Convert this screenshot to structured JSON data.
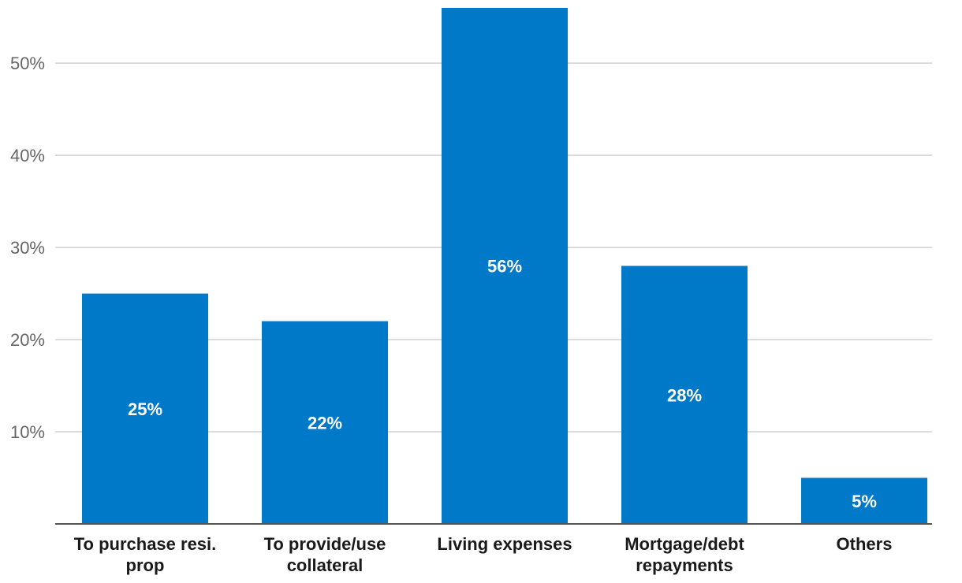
{
  "chart_data": {
    "type": "bar",
    "title": "",
    "xlabel": "",
    "ylabel": "",
    "categories": [
      [
        "To purchase resi.",
        "prop"
      ],
      [
        "To provide/use",
        "collateral"
      ],
      [
        "Living expenses"
      ],
      [
        "Mortgage/debt",
        "repayments"
      ],
      [
        "Others"
      ]
    ],
    "values": [
      25,
      22,
      56,
      28,
      5
    ],
    "data_labels": [
      "25%",
      "22%",
      "56%",
      "28%",
      "5%"
    ],
    "ylim": [
      0,
      56
    ],
    "yticks": [
      10,
      20,
      30,
      40,
      50
    ],
    "ytick_labels": [
      "10%",
      "20%",
      "30%",
      "40%",
      "50%"
    ],
    "grid": true,
    "legend": "none",
    "bar_color": "#0079c8"
  }
}
